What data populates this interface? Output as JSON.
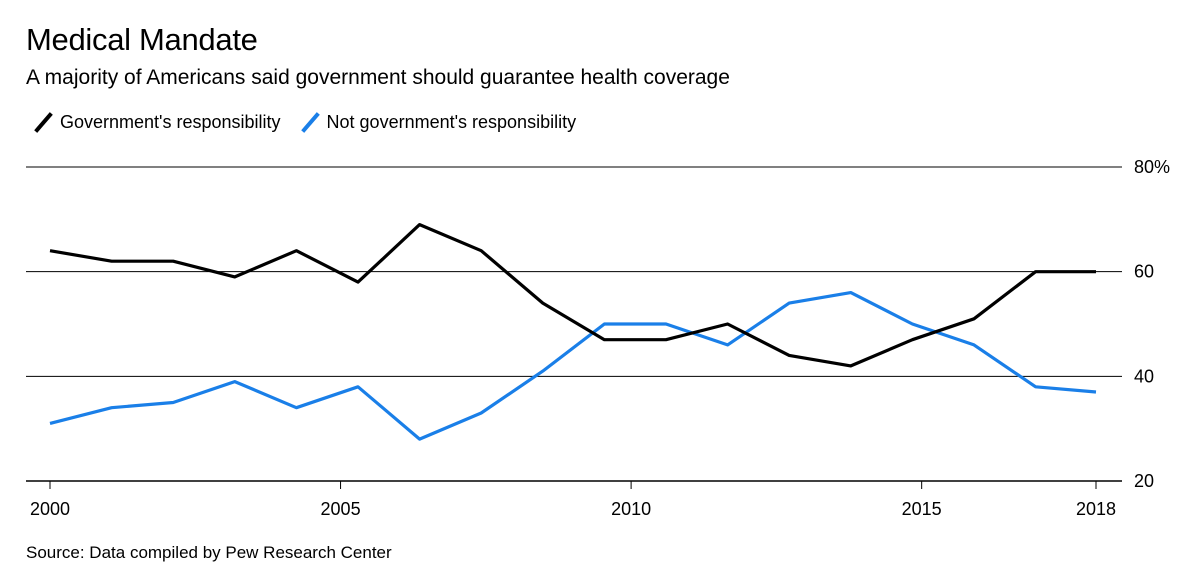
{
  "chart_data": {
    "type": "line",
    "title": "Medical Mandate",
    "subtitle": "A majority of Americans said government should guarantee health coverage",
    "source": "Source: Data compiled by Pew Research Center",
    "x": [
      2000,
      2001.06,
      2002.12,
      2003.18,
      2004.24,
      2005.3,
      2006.36,
      2007.42,
      2008.48,
      2009.54,
      2010.6,
      2011.66,
      2012.72,
      2013.78,
      2014.84,
      2015.9,
      2016.96,
      2018
    ],
    "series": [
      {
        "name": "Government's responsibility",
        "color": "#000000",
        "values": [
          64,
          62,
          62,
          59,
          64,
          58,
          69,
          64,
          54,
          47,
          47,
          50,
          44,
          42,
          47,
          51,
          60,
          60
        ]
      },
      {
        "name": "Not government's responsibility",
        "color": "#1a7fe8",
        "values": [
          31,
          34,
          35,
          39,
          34,
          38,
          28,
          33,
          41,
          50,
          50,
          46,
          54,
          56,
          50,
          46,
          38,
          37
        ]
      }
    ],
    "x_ticks": [
      2000,
      2005,
      2010,
      2015,
      2018
    ],
    "x_tick_labels": [
      "2000",
      "2005",
      "2010",
      "2015",
      "2018"
    ],
    "y_ticks": [
      20,
      40,
      60,
      80
    ],
    "y_tick_labels": [
      "20",
      "40",
      "60",
      "80%"
    ],
    "xlim": [
      2000,
      2018
    ],
    "ylim": [
      20,
      80
    ],
    "grid": true,
    "legend_position": "top-left",
    "xlabel": "",
    "ylabel": ""
  }
}
